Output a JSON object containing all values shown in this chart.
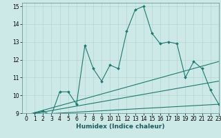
{
  "title": "",
  "xlabel": "Humidex (Indice chaleur)",
  "xlim": [
    -0.5,
    23
  ],
  "ylim": [
    9,
    15.2
  ],
  "yticks": [
    9,
    10,
    11,
    12,
    13,
    14,
    15
  ],
  "xticks": [
    0,
    1,
    2,
    3,
    4,
    5,
    6,
    7,
    8,
    9,
    10,
    11,
    12,
    13,
    14,
    15,
    16,
    17,
    18,
    19,
    20,
    21,
    22,
    23
  ],
  "bg_color": "#cce9e7",
  "grid_color": "#b8d8d6",
  "line_color": "#1a7a6e",
  "series1_x": [
    0,
    1,
    2,
    3,
    4,
    5,
    6,
    7,
    8,
    9,
    10,
    11,
    12,
    13,
    14,
    15,
    16,
    17,
    18,
    19,
    20,
    21,
    22,
    23
  ],
  "series1_y": [
    8.9,
    9.0,
    9.1,
    8.9,
    10.2,
    10.2,
    9.5,
    12.8,
    11.5,
    10.8,
    11.7,
    11.5,
    13.6,
    14.8,
    15.0,
    13.5,
    12.9,
    13.0,
    12.9,
    11.0,
    11.9,
    11.5,
    10.3,
    9.5
  ],
  "series2_x": [
    0,
    23
  ],
  "series2_y": [
    8.9,
    9.5
  ],
  "series3_x": [
    0,
    23
  ],
  "series3_y": [
    8.9,
    10.8
  ],
  "series4_x": [
    0,
    23
  ],
  "series4_y": [
    8.9,
    11.9
  ],
  "tick_fontsize": 5.5,
  "xlabel_fontsize": 6.5
}
